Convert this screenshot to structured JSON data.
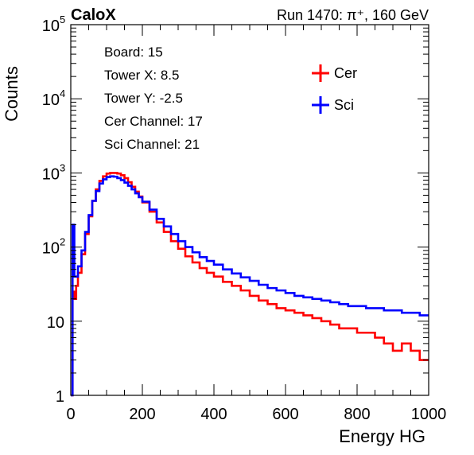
{
  "header": {
    "experiment": "CaloX",
    "run_info": "Run 1470:   π⁺, 160 GeV"
  },
  "info_box": {
    "lines": [
      "Board: 15",
      "Tower X: 8.5",
      "Tower Y: -2.5",
      "Cer Channel: 17",
      "Sci Channel: 21"
    ]
  },
  "legend": [
    {
      "label": "Cer",
      "color": "#ff0000"
    },
    {
      "label": "Sci",
      "color": "#0000ff"
    }
  ],
  "chart_data": {
    "type": "line",
    "xlabel": "Energy HG",
    "ylabel": "Counts",
    "xlim": [
      0,
      1000
    ],
    "ylim": [
      1,
      100000
    ],
    "yscale": "log",
    "x_ticks": [
      "0",
      "200",
      "400",
      "600",
      "800",
      "1000"
    ],
    "y_ticks": [
      {
        "base": "1",
        "exp": ""
      },
      {
        "base": "10",
        "exp": ""
      },
      {
        "base": "10",
        "exp": "2"
      },
      {
        "base": "10",
        "exp": "3"
      },
      {
        "base": "10",
        "exp": "4"
      },
      {
        "base": "10",
        "exp": "5"
      }
    ],
    "grid": false,
    "legend_position": "top-right",
    "x": [
      0,
      5,
      10,
      15,
      20,
      30,
      40,
      50,
      60,
      70,
      80,
      90,
      100,
      110,
      120,
      130,
      140,
      150,
      160,
      170,
      180,
      190,
      200,
      220,
      240,
      260,
      280,
      300,
      320,
      340,
      360,
      380,
      400,
      425,
      450,
      475,
      500,
      525,
      550,
      575,
      600,
      625,
      650,
      675,
      700,
      725,
      750,
      775,
      800,
      825,
      850,
      875,
      900,
      925,
      950,
      975,
      1000
    ],
    "series": [
      {
        "name": "Cer",
        "color": "#ff0000",
        "values": [
          1,
          25,
          20,
          30,
          45,
          80,
          150,
          260,
          420,
          600,
          780,
          900,
          980,
          1000,
          1000,
          980,
          930,
          850,
          750,
          650,
          560,
          480,
          400,
          300,
          215,
          160,
          120,
          95,
          75,
          62,
          52,
          45,
          40,
          34,
          30,
          26,
          22,
          19,
          17,
          15,
          14,
          13,
          12,
          11,
          10,
          9,
          8,
          8,
          7,
          7,
          6,
          5,
          4,
          5,
          4,
          3,
          3
        ]
      },
      {
        "name": "Sci",
        "color": "#0000ff",
        "values": [
          1,
          200,
          40,
          40,
          55,
          90,
          160,
          270,
          420,
          570,
          720,
          820,
          880,
          900,
          890,
          850,
          800,
          740,
          670,
          600,
          530,
          470,
          410,
          320,
          240,
          190,
          150,
          120,
          100,
          85,
          73,
          65,
          58,
          50,
          44,
          39,
          35,
          31,
          28,
          26,
          24,
          22,
          21,
          20,
          19,
          18,
          17,
          16,
          16,
          15,
          15,
          14,
          14,
          13,
          13,
          12,
          12
        ]
      }
    ]
  }
}
